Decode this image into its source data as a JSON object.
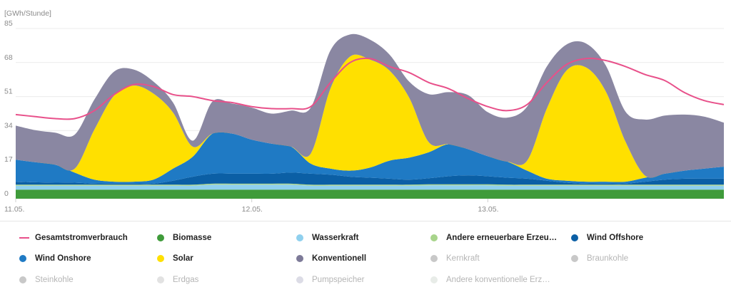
{
  "chart_data": {
    "type": "area",
    "ylabel": "[GWh/Stunde]",
    "ylim": [
      0,
      85
    ],
    "yticks": [
      0,
      17,
      34,
      51,
      68,
      85
    ],
    "x_tick_labels": [
      "11.05.",
      "12.05.",
      "13.05."
    ],
    "grid": true,
    "stacked": true,
    "x_hours": [
      0,
      2,
      4,
      6,
      8,
      10,
      12,
      14,
      16,
      18,
      20,
      22,
      24,
      26,
      28,
      30,
      32,
      34,
      36,
      38,
      40,
      42,
      44,
      46,
      48,
      50,
      52,
      54,
      56,
      58,
      60,
      62,
      64,
      66,
      68,
      70,
      72
    ],
    "series": [
      {
        "name": "Biomasse",
        "color": "#3f9b3a",
        "values": [
          4.5,
          4.5,
          4.5,
          4.5,
          4.5,
          4.5,
          4.5,
          4.5,
          4.5,
          4.5,
          4.5,
          4.5,
          4.5,
          4.5,
          4.5,
          4.5,
          4.5,
          4.5,
          4.5,
          4.5,
          4.5,
          4.5,
          4.5,
          4.5,
          4.5,
          4.5,
          4.5,
          4.5,
          4.5,
          4.5,
          4.5,
          4.5,
          4.5,
          4.5,
          4.5,
          4.5,
          4.5
        ]
      },
      {
        "name": "Wasserkraft",
        "color": "#8fd0ee",
        "values": [
          2,
          2,
          2,
          2,
          2,
          2,
          2,
          2,
          2,
          2,
          2.5,
          2.5,
          2.5,
          2.5,
          2.5,
          2,
          2,
          2,
          2,
          2,
          2,
          2.2,
          2.2,
          2.2,
          2.2,
          2,
          2,
          2,
          2,
          2,
          2,
          2,
          2,
          2,
          2,
          2,
          2
        ]
      },
      {
        "name": "Andere erneuerbare Erzeugung",
        "color": "#a8d48b",
        "values": [
          0.5,
          0.5,
          0.5,
          0.5,
          0.5,
          0.5,
          0.5,
          0.5,
          0.5,
          0.5,
          0.5,
          0.5,
          0.5,
          0.5,
          0.5,
          0.5,
          0.5,
          0.5,
          0.5,
          0.5,
          0.5,
          0.5,
          0.5,
          0.5,
          0.5,
          0.5,
          0.5,
          0.5,
          0.5,
          0.5,
          0.5,
          0.5,
          0.5,
          0.5,
          0.5,
          0.5,
          0.5
        ]
      },
      {
        "name": "Wind Offshore",
        "color": "#0b5fa5",
        "values": [
          1.5,
          1.2,
          1,
          1,
          0.5,
          0.5,
          0.5,
          0.5,
          2,
          4,
          5,
          5,
          5,
          5,
          5.5,
          5.5,
          5,
          4,
          3.5,
          3,
          2.5,
          3,
          4,
          4.5,
          4,
          3.5,
          3,
          2,
          1,
          0.5,
          0.5,
          0.5,
          1.5,
          2.5,
          3,
          3,
          3
        ]
      },
      {
        "name": "Wind Onshore",
        "color": "#1f7ac4",
        "values": [
          11,
          10,
          9,
          5,
          2,
          1,
          1,
          2,
          6,
          10,
          20,
          20,
          17,
          15,
          13,
          5,
          3,
          3,
          5,
          9,
          11,
          13,
          16,
          13,
          10,
          8,
          4,
          1,
          1,
          1,
          1,
          1,
          2,
          3,
          4,
          5,
          6
        ]
      },
      {
        "name": "Solar",
        "color": "#ffe000",
        "values": [
          0,
          0,
          0,
          2,
          25,
          43,
          48,
          43,
          28,
          5,
          0,
          0,
          0,
          0,
          0,
          5,
          40,
          57,
          54,
          45,
          30,
          5,
          0,
          0,
          0,
          0,
          5,
          35,
          55,
          57,
          45,
          20,
          1,
          0,
          0,
          0,
          0
        ]
      },
      {
        "name": "Konventionell",
        "color": "#8a87a2",
        "values": [
          17,
          16,
          16,
          17,
          15,
          12,
          8,
          6,
          5,
          3,
          16,
          15,
          16,
          15,
          18,
          23,
          19,
          11,
          10,
          8,
          8,
          24,
          26,
          27,
          22,
          22,
          27,
          21,
          13,
          12,
          13,
          15,
          28,
          29,
          28,
          26,
          22
        ]
      }
    ],
    "line": {
      "name": "Gesamtstromverbrauch",
      "color": "#e8508a",
      "values": [
        42,
        41,
        40,
        40,
        44,
        52,
        57,
        56,
        52,
        51,
        49,
        48,
        46,
        45,
        45,
        46,
        58,
        68,
        70,
        66,
        63,
        58,
        55,
        50,
        46,
        44,
        47,
        58,
        67,
        70,
        69,
        66,
        62,
        59,
        53,
        49,
        47
      ]
    }
  },
  "legend": {
    "rows": [
      [
        {
          "label": "Gesamtstromverbrauch",
          "color": "#e8508a",
          "kind": "line",
          "active": true
        },
        {
          "label": "Biomasse",
          "color": "#3f9b3a",
          "kind": "dot",
          "active": true
        },
        {
          "label": "Wasserkraft",
          "color": "#8fd0ee",
          "kind": "dot",
          "active": true
        },
        {
          "label": "Andere erneuerbare Erzeu…",
          "color": "#a8d48b",
          "kind": "dot",
          "active": true
        },
        {
          "label": "Wind Offshore",
          "color": "#0b5fa5",
          "kind": "dot",
          "active": true
        }
      ],
      [
        {
          "label": "Wind Onshore",
          "color": "#1f7ac4",
          "kind": "dot",
          "active": true
        },
        {
          "label": "Solar",
          "color": "#ffe000",
          "kind": "dot",
          "active": true
        },
        {
          "label": "Konventionell",
          "color": "#7d7a98",
          "kind": "dot",
          "active": true
        },
        {
          "label": "Kernkraft",
          "color": "#c8c8c8",
          "kind": "dot",
          "active": false
        },
        {
          "label": "Braunkohle",
          "color": "#c8c8c8",
          "kind": "dot",
          "active": false
        }
      ],
      [
        {
          "label": "Steinkohle",
          "color": "#c8c8c8",
          "kind": "dot",
          "active": false
        },
        {
          "label": "Erdgas",
          "color": "#e2e2e2",
          "kind": "dot",
          "active": false
        },
        {
          "label": "Pumpspeicher",
          "color": "#dcdce6",
          "kind": "dot",
          "active": false
        },
        {
          "label": "Andere konventionelle Erz…",
          "color": "#e8ece8",
          "kind": "dot",
          "active": false
        }
      ]
    ]
  }
}
